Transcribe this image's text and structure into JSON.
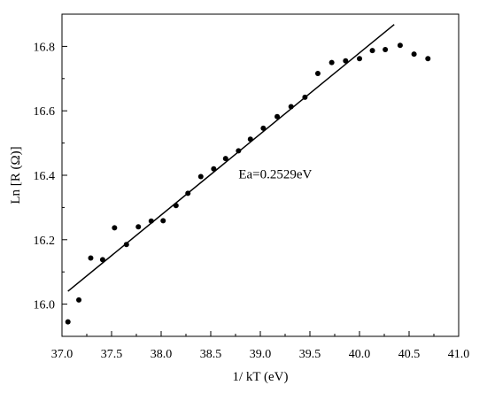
{
  "chart_data": {
    "type": "scatter",
    "xlabel": "1/ kT  (eV)",
    "ylabel": "Ln [R (Ω)]",
    "xlim": [
      37.0,
      41.0
    ],
    "ylim": [
      15.9,
      16.9
    ],
    "x_ticks": [
      "37.0",
      "37.5",
      "38.0",
      "38.5",
      "39.0",
      "39.5",
      "40.0",
      "40.5",
      "41.0"
    ],
    "y_ticks": [
      "16.0",
      "16.2",
      "16.4",
      "16.6",
      "16.8"
    ],
    "grid": false,
    "annotation": "Ea=0.2529eV",
    "series": [
      {
        "kind": "scatter",
        "marker_color": "#000000",
        "points": [
          [
            37.06,
            15.945
          ],
          [
            37.17,
            16.013
          ],
          [
            37.29,
            16.143
          ],
          [
            37.41,
            16.138
          ],
          [
            37.53,
            16.237
          ],
          [
            37.65,
            16.185
          ],
          [
            37.77,
            16.24
          ],
          [
            37.9,
            16.258
          ],
          [
            38.02,
            16.259
          ],
          [
            38.15,
            16.306
          ],
          [
            38.27,
            16.344
          ],
          [
            38.4,
            16.396
          ],
          [
            38.53,
            16.42
          ],
          [
            38.65,
            16.452
          ],
          [
            38.78,
            16.476
          ],
          [
            38.9,
            16.512
          ],
          [
            39.03,
            16.546
          ],
          [
            39.17,
            16.582
          ],
          [
            39.31,
            16.613
          ],
          [
            39.45,
            16.642
          ],
          [
            39.58,
            16.716
          ],
          [
            39.72,
            16.75
          ],
          [
            39.86,
            16.755
          ],
          [
            40.0,
            16.762
          ],
          [
            40.13,
            16.787
          ],
          [
            40.26,
            16.79
          ],
          [
            40.41,
            16.803
          ],
          [
            40.55,
            16.776
          ],
          [
            40.69,
            16.762
          ]
        ]
      },
      {
        "kind": "line",
        "line_color": "#000000",
        "points": [
          [
            37.06,
            16.04
          ],
          [
            40.35,
            16.868
          ]
        ]
      }
    ]
  }
}
